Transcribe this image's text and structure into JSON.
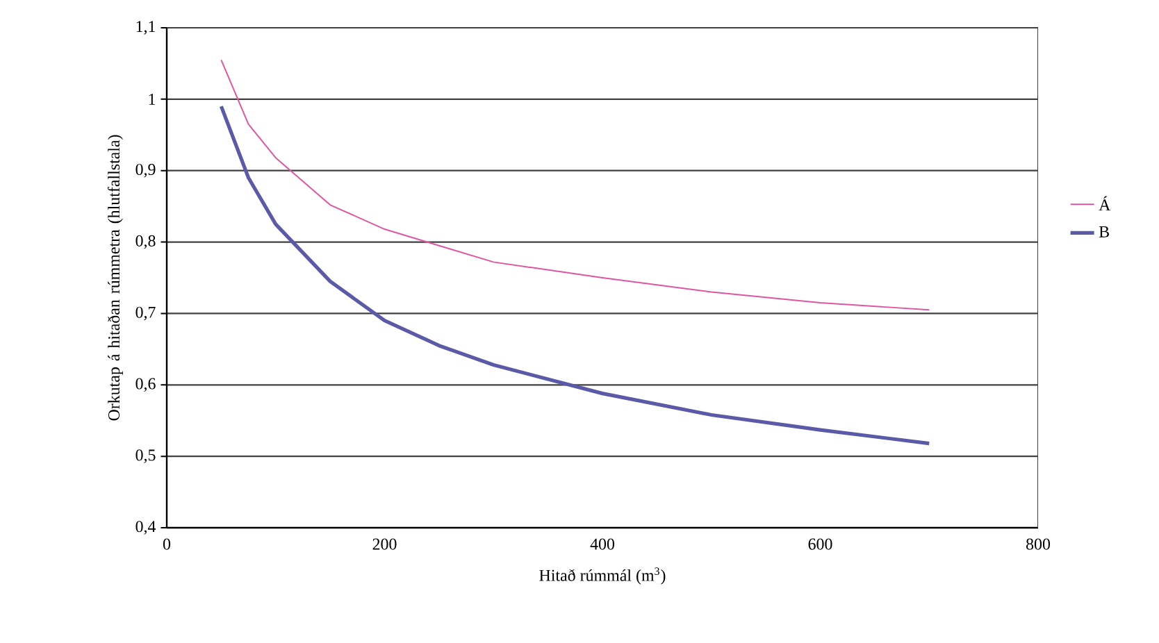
{
  "chart_data": {
    "type": "line",
    "xlabel": "Hitað rúmmál (m$^{3}$)",
    "ylabel": "Orkutap á hitaðan rúmmetra (hlutfallstala)",
    "x": [
      50,
      75,
      100,
      150,
      200,
      250,
      300,
      400,
      500,
      600,
      700
    ],
    "series": [
      {
        "name": "Á",
        "color": "#e0559f",
        "values": [
          1.055,
          0.965,
          0.918,
          0.852,
          0.818,
          0.795,
          0.772,
          0.75,
          0.73,
          0.715,
          0.705
        ]
      },
      {
        "name": "B",
        "color": "#5a5aa8",
        "values": [
          0.99,
          0.89,
          0.825,
          0.745,
          0.69,
          0.655,
          0.628,
          0.588,
          0.558,
          0.537,
          0.518
        ]
      }
    ],
    "xlim": [
      0,
      800
    ],
    "xticks": [
      0,
      200,
      400,
      600,
      800
    ],
    "ylim": [
      0.4,
      1.1
    ],
    "yticks": [
      {
        "value": 0.4,
        "label": "0,4"
      },
      {
        "value": 0.5,
        "label": "0,5"
      },
      {
        "value": 0.6,
        "label": "0,6"
      },
      {
        "value": 0.7,
        "label": "0,7"
      },
      {
        "value": 0.8,
        "label": "0,8"
      },
      {
        "value": 0.9,
        "label": "0,9"
      },
      {
        "value": 1,
        "label": "1"
      },
      {
        "value": 1.1,
        "label": "1,1"
      }
    ],
    "grid": "y",
    "legend": "right",
    "marker": "none",
    "line_style": "solid"
  }
}
